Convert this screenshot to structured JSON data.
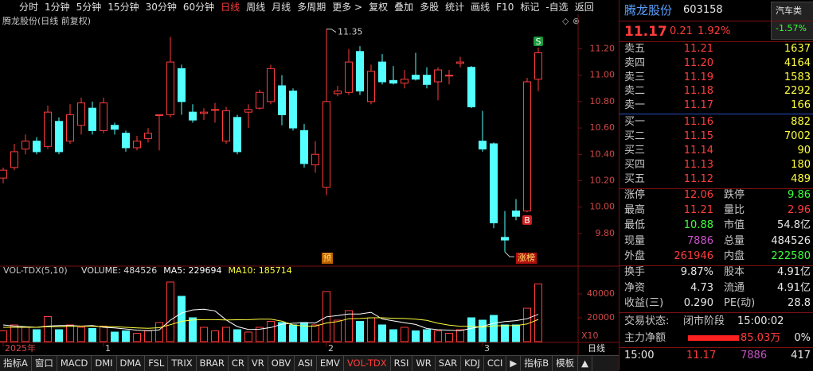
{
  "toolbar": {
    "tabs": [
      "分时",
      "1分钟",
      "5分钟",
      "15分钟",
      "30分钟",
      "60分钟",
      "日线",
      "周线",
      "月线",
      "多周期",
      "更多 >",
      "复权",
      "叠加",
      "多股",
      "统计",
      "画线",
      "F10",
      "标记",
      "-自选",
      "返回"
    ],
    "active": 6
  },
  "chart_data": [
    {
      "type": "candlestick",
      "title": "腾龙股份(日线 前复权)",
      "open": [
        10.22,
        10.3,
        10.44,
        10.5,
        10.46,
        10.65,
        10.5,
        10.62,
        10.75,
        10.58,
        10.62,
        10.56,
        10.45,
        10.52,
        10.7,
        10.7,
        11.05,
        10.72,
        10.71,
        10.74,
        10.5,
        10.68,
        10.72,
        10.75,
        10.8,
        10.92,
        10.88,
        10.58,
        10.32,
        10.15,
        10.86,
        10.87,
        11.18,
        10.8,
        11.1,
        10.96,
        10.94,
        11.0,
        11.0,
        10.95,
        11.0,
        11.09,
        11.06,
        10.5,
        10.48,
        9.77,
        9.97,
        9.97,
        10.97
      ],
      "close": [
        10.28,
        10.42,
        10.5,
        10.42,
        10.72,
        10.42,
        10.7,
        10.79,
        10.58,
        10.79,
        10.59,
        10.45,
        10.5,
        10.56,
        10.7,
        11.1,
        10.8,
        10.66,
        10.72,
        10.74,
        10.73,
        10.42,
        10.74,
        10.87,
        11.05,
        10.7,
        10.6,
        10.33,
        10.4,
        10.8,
        10.88,
        11.1,
        10.88,
        11.03,
        10.95,
        10.94,
        10.97,
        10.97,
        10.93,
        11.04,
        11.0,
        11.1,
        10.76,
        10.44,
        9.88,
        9.75,
        9.93,
        10.95,
        11.17
      ],
      "high": [
        10.3,
        10.48,
        10.55,
        10.53,
        10.77,
        10.68,
        10.78,
        10.83,
        10.8,
        10.83,
        10.64,
        10.58,
        10.54,
        10.6,
        10.7,
        11.29,
        11.08,
        10.78,
        10.75,
        10.79,
        10.76,
        10.7,
        10.78,
        10.89,
        11.08,
        11.0,
        10.9,
        10.63,
        10.5,
        11.35,
        10.92,
        11.2,
        11.22,
        11.08,
        11.16,
        11.07,
        11.04,
        11.17,
        11.06,
        11.06,
        11.04,
        11.14,
        11.07,
        10.73,
        10.49,
        9.97,
        10.06,
        10.98,
        11.21
      ],
      "low": [
        10.18,
        10.28,
        10.4,
        10.4,
        10.44,
        10.4,
        10.48,
        10.55,
        10.55,
        10.56,
        10.55,
        10.42,
        10.43,
        10.49,
        10.43,
        10.68,
        10.7,
        10.64,
        10.66,
        10.64,
        10.48,
        10.4,
        10.6,
        10.74,
        10.78,
        10.62,
        10.58,
        10.3,
        10.26,
        10.09,
        10.84,
        10.85,
        10.85,
        10.78,
        10.93,
        10.93,
        10.9,
        10.96,
        10.9,
        10.81,
        10.93,
        11.06,
        10.75,
        10.42,
        9.84,
        9.66,
        9.9,
        9.96,
        10.88
      ],
      "up_color": "#ff3c3c",
      "down_color": "#54ffff",
      "ylim": [
        9.57,
        11.45
      ],
      "yticks": [
        {
          "value": 9.8,
          "label": "9.80"
        },
        {
          "value": 10.0,
          "label": "10.00"
        },
        {
          "value": 10.2,
          "label": "10.20"
        },
        {
          "value": 10.4,
          "label": "10.40"
        },
        {
          "value": 10.6,
          "label": "10.60"
        },
        {
          "value": 10.8,
          "label": "10.80"
        },
        {
          "value": 11.0,
          "label": "11.00"
        },
        {
          "value": 11.2,
          "label": "11.20"
        }
      ],
      "high_label": 11.35,
      "low_label": 9.66,
      "signals": [
        "S",
        "B"
      ],
      "tags": [
        "预",
        "涨榜"
      ]
    },
    {
      "type": "volume",
      "title": "VOL-TDX(5,10)",
      "categories": [
        "2025年",
        null,
        null,
        null,
        null,
        null,
        null,
        null,
        null,
        "1",
        null,
        null,
        null,
        null,
        null,
        null,
        null,
        null,
        null,
        null,
        null,
        null,
        null,
        null,
        null,
        null,
        null,
        null,
        null,
        "2",
        null,
        null,
        null,
        null,
        null,
        null,
        null,
        null,
        null,
        null,
        null,
        null,
        null,
        "3",
        null,
        null,
        null,
        null,
        null
      ],
      "series": [
        {
          "name": "VOLUME: 484526",
          "color": "#dddddd",
          "values": [
            9000,
            14000,
            12000,
            10000,
            21000,
            10000,
            14000,
            12000,
            11000,
            13000,
            8000,
            9000,
            7000,
            9000,
            16000,
            50000,
            38000,
            20000,
            12000,
            9000,
            12000,
            10000,
            8000,
            12000,
            17000,
            16000,
            14000,
            16000,
            14000,
            42000,
            18000,
            26000,
            17000,
            20000,
            14000,
            10000,
            12000,
            9000,
            10000,
            9000,
            7000,
            10000,
            20000,
            18000,
            22000,
            14000,
            14000,
            28000,
            48453
          ]
        },
        {
          "name": "MA5: 229694",
          "color": "#ffffff",
          "values": [
            14000,
            13000,
            12500,
            12000,
            13000,
            13500,
            13500,
            13000,
            13500,
            12000,
            11500,
            10600,
            9600,
            9200,
            9800,
            18000,
            24000,
            26600,
            27200,
            25800,
            18200,
            12600,
            10200,
            10400,
            11800,
            14600,
            15400,
            15800,
            15600,
            20800,
            21800,
            23200,
            23200,
            24600,
            19000,
            17400,
            15800,
            14400,
            11000,
            10000,
            9600,
            9200,
            11200,
            12800,
            15400,
            16800,
            17600,
            19200,
            22969
          ]
        },
        {
          "name": "MA10: 185714",
          "color": "#ffff3c",
          "values": [
            12000,
            12000,
            12000,
            12000,
            12500,
            12500,
            12800,
            13000,
            12800,
            12600,
            12500,
            12000,
            11500,
            11200,
            11700,
            14200,
            17000,
            18200,
            18400,
            18400,
            18200,
            18300,
            18400,
            18800,
            18800,
            17200,
            14000,
            13000,
            13000,
            15600,
            16800,
            19200,
            19400,
            20000,
            20000,
            19600,
            19400,
            18800,
            17800,
            15400,
            13800,
            12800,
            12800,
            12200,
            13200,
            13400,
            13400,
            14800,
            18571
          ]
        }
      ],
      "ylim": [
        0,
        56000
      ],
      "yticks": [
        20000,
        40000
      ],
      "unit_label": "X10",
      "period_label": "日线"
    }
  ],
  "indicator_tabs": {
    "tabs": [
      "指标A",
      "窗口",
      "MACD",
      "DMI",
      "DMA",
      "FSL",
      "TRIX",
      "BRAR",
      "CR",
      "VR",
      "OBV",
      "ASI",
      "EMV",
      "VOL-TDX",
      "RSI",
      "WR",
      "SAR",
      "KDJ",
      "CCI",
      "▶",
      "指标B",
      "模板",
      "▲"
    ],
    "active": 13
  },
  "quote": {
    "name": "腾龙股份",
    "code": "603158",
    "sector": "汽车类",
    "sector_change": "-1.57%",
    "price": "11.17",
    "change": "0.21",
    "change_pct": "1.92%",
    "sell": [
      [
        "卖五",
        "11.21",
        "1637"
      ],
      [
        "卖四",
        "11.20",
        "4164"
      ],
      [
        "卖三",
        "11.19",
        "1583"
      ],
      [
        "卖二",
        "11.18",
        "2292"
      ],
      [
        "卖一",
        "11.17",
        "166"
      ]
    ],
    "buy": [
      [
        "买一",
        "11.16",
        "882"
      ],
      [
        "买二",
        "11.15",
        "7002"
      ],
      [
        "买三",
        "11.14",
        "90"
      ],
      [
        "买四",
        "11.13",
        "180"
      ],
      [
        "买五",
        "11.12",
        "489"
      ]
    ],
    "stats": [
      [
        "涨停",
        "12.06",
        "跌停",
        "9.86"
      ],
      [
        "最高",
        "11.21",
        "量比",
        "2.96"
      ],
      [
        "最低",
        "10.88",
        "市值",
        "54.8亿"
      ],
      [
        "现量",
        "7886",
        "总量",
        "484526"
      ],
      [
        "外盘",
        "261946",
        "内盘",
        "222580"
      ]
    ],
    "stats2": [
      [
        "换手",
        "9.87%",
        "股本",
        "4.91亿"
      ],
      [
        "净资",
        "4.73",
        "流通",
        "4.91亿"
      ],
      [
        "收益(三)",
        "0.290",
        "PE(动)",
        "28.8"
      ]
    ],
    "status_label": "交易状态:",
    "status": "闭市阶段",
    "status_time": "15:00:02",
    "flow_label": "主力净额",
    "flow": "85.03万",
    "flow_pct": "0%",
    "tick": [
      "15:00",
      "11.17",
      "7886",
      "417"
    ]
  }
}
